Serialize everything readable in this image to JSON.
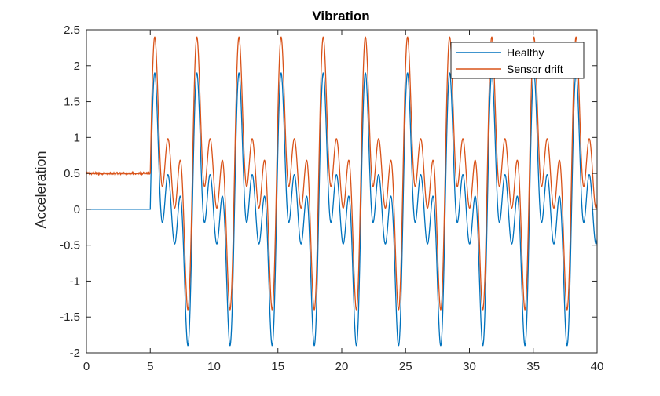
{
  "chart_data": {
    "type": "line",
    "title": "Vibration",
    "xlabel": "",
    "ylabel": "Acceleration",
    "xlim": [
      0,
      40
    ],
    "ylim": [
      -2,
      2.5
    ],
    "xticks": [
      0,
      5,
      10,
      15,
      20,
      25,
      30,
      35,
      40
    ],
    "yticks": [
      -2,
      -1.5,
      -1,
      -0.5,
      0,
      0.5,
      1,
      1.5,
      2,
      2.5
    ],
    "xtick_labels": [
      "0",
      "5",
      "10",
      "15",
      "20",
      "25",
      "30",
      "35",
      "40"
    ],
    "ytick_labels": [
      "-2",
      "-1.5",
      "-1",
      "-0.5",
      "0",
      "0.5",
      "1",
      "1.5",
      "2",
      "2.5"
    ],
    "grid": false,
    "legend_position": "top-right",
    "signal": {
      "onset_time": 5.0,
      "period": 3.3,
      "peak_max": 1.9,
      "trough_min": -1.9
    },
    "series": [
      {
        "name": "Healthy",
        "color": "#0072BD",
        "offset": 0,
        "noise": 0
      },
      {
        "name": "Sensor drift",
        "color": "#D95319",
        "offset": 0.5,
        "noise": 0.012
      }
    ]
  }
}
